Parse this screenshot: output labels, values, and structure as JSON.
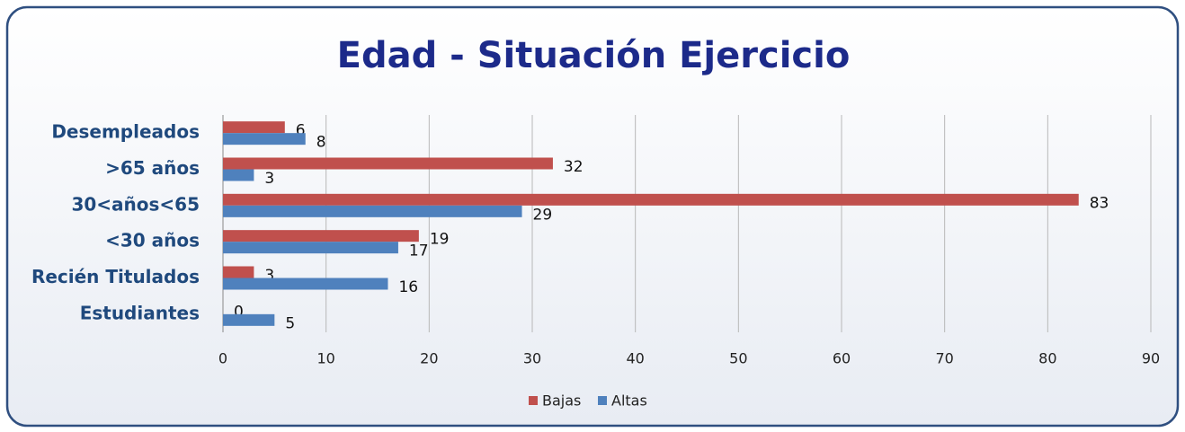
{
  "chart_data": {
    "type": "bar",
    "orientation": "horizontal",
    "title": "Edad - Situación Ejercicio",
    "categories": [
      "Desempleados",
      ">65 años",
      "30<años<65",
      "<30 años",
      "Recién Titulados",
      "Estudiantes"
    ],
    "series": [
      {
        "name": "Bajas",
        "color": "#c0504d",
        "values": [
          6,
          32,
          83,
          19,
          3,
          0
        ]
      },
      {
        "name": "Altas",
        "color": "#4f81bd",
        "values": [
          8,
          3,
          29,
          17,
          16,
          5
        ]
      }
    ],
    "xlim": [
      0,
      90
    ],
    "xticks": [
      0,
      10,
      20,
      30,
      40,
      50,
      60,
      70,
      80,
      90
    ],
    "grid": true,
    "legend": "bottom"
  }
}
